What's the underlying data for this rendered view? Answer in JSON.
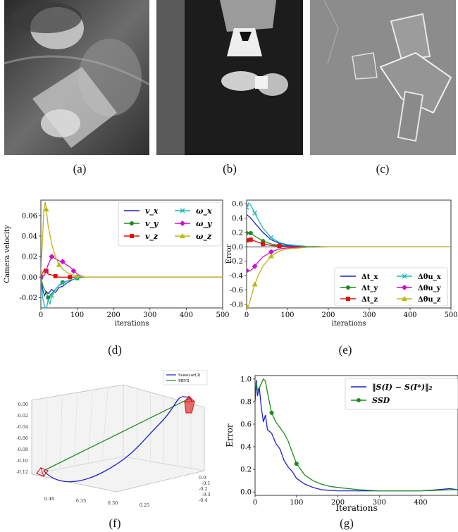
{
  "captions": [
    "(a)",
    "(b)",
    "(c)",
    "(d)",
    "(e)",
    "(f)",
    "(g)"
  ],
  "panel_f_legend": [
    "Ssaso-ar(3)",
    "PBVS"
  ],
  "chart_data": [
    {
      "panel": "d",
      "type": "line",
      "ylabel": "Camera velocity",
      "xlabel": "iterations",
      "xlim": [
        0,
        500
      ],
      "ylim": [
        -0.03,
        0.075
      ],
      "xticks": [
        0,
        100,
        200,
        300,
        400,
        500
      ],
      "yticks": [
        -0.02,
        0.0,
        0.02,
        0.04,
        0.06
      ],
      "legend_position": "top-right",
      "series": [
        {
          "name": "v_x",
          "color": "#1f1fd0",
          "marker": "none",
          "x": [
            0,
            5,
            10,
            15,
            20,
            30,
            40,
            50,
            60,
            70,
            80,
            90,
            100,
            120,
            150,
            200,
            500
          ],
          "y": [
            0,
            -0.012,
            -0.018,
            -0.014,
            -0.016,
            -0.012,
            -0.015,
            -0.01,
            -0.009,
            -0.006,
            -0.004,
            -0.002,
            -0.001,
            0,
            0,
            0,
            0
          ]
        },
        {
          "name": "v_y",
          "color": "#1a8c1a",
          "marker": "circle",
          "x": [
            0,
            5,
            10,
            15,
            20,
            30,
            40,
            50,
            60,
            70,
            80,
            90,
            100,
            120,
            150,
            200,
            500
          ],
          "y": [
            0,
            -0.008,
            -0.012,
            -0.015,
            -0.02,
            -0.016,
            -0.012,
            -0.008,
            -0.005,
            -0.004,
            -0.003,
            -0.002,
            -0.001,
            0,
            0,
            0,
            0
          ]
        },
        {
          "name": "v_z",
          "color": "#e01010",
          "marker": "square",
          "x": [
            0,
            5,
            10,
            15,
            20,
            30,
            40,
            50,
            60,
            80,
            100,
            500
          ],
          "y": [
            0,
            0.004,
            0.008,
            0.006,
            0.003,
            0.002,
            0.001,
            0,
            0,
            0,
            0,
            0
          ]
        },
        {
          "name": "ω_x",
          "color": "#17b8b8",
          "marker": "x",
          "x": [
            0,
            5,
            10,
            15,
            20,
            25,
            30,
            40,
            50,
            60,
            70,
            80,
            100,
            120,
            500
          ],
          "y": [
            0,
            -0.02,
            -0.028,
            -0.032,
            -0.022,
            -0.026,
            -0.018,
            -0.012,
            -0.008,
            -0.006,
            -0.004,
            -0.003,
            -0.001,
            0,
            0
          ]
        },
        {
          "name": "ω_y",
          "color": "#cc10cc",
          "marker": "diamond",
          "x": [
            0,
            10,
            20,
            30,
            40,
            50,
            60,
            70,
            80,
            90,
            100,
            110,
            120,
            150,
            500
          ],
          "y": [
            0,
            0.002,
            0.012,
            0.02,
            0.018,
            0.016,
            0.015,
            0.012,
            0.01,
            0.006,
            0.003,
            0.001,
            0,
            0,
            0
          ]
        },
        {
          "name": "ω_z",
          "color": "#b8b814",
          "marker": "triangle",
          "x": [
            0,
            5,
            8,
            12,
            15,
            20,
            30,
            40,
            50,
            60,
            70,
            80,
            100,
            120,
            150,
            500
          ],
          "y": [
            0.005,
            0.04,
            0.065,
            0.073,
            0.066,
            0.05,
            0.032,
            0.02,
            0.012,
            0.008,
            0.005,
            0.003,
            0.001,
            0,
            0,
            0
          ]
        }
      ]
    },
    {
      "panel": "e",
      "type": "line",
      "ylabel": "Error",
      "xlabel": "iterations",
      "xlim": [
        0,
        500
      ],
      "ylim": [
        -0.85,
        0.65
      ],
      "xticks": [
        0,
        100,
        200,
        300,
        400,
        500
      ],
      "yticks": [
        -0.8,
        -0.6,
        -0.4,
        -0.2,
        0.0,
        0.2,
        0.4,
        0.6
      ],
      "legend_position": "bottom-right",
      "series": [
        {
          "name": "Δt_x",
          "color": "#1f1fd0",
          "marker": "none",
          "x": [
            0,
            10,
            20,
            40,
            60,
            80,
            100,
            150,
            200,
            500
          ],
          "y": [
            0.45,
            0.4,
            0.33,
            0.2,
            0.1,
            0.05,
            0.02,
            0.005,
            0,
            0
          ]
        },
        {
          "name": "Δt_y",
          "color": "#1a8c1a",
          "marker": "circle",
          "x": [
            0,
            5,
            10,
            20,
            40,
            60,
            80,
            100,
            150,
            200,
            500
          ],
          "y": [
            0.19,
            0.2,
            0.19,
            0.15,
            0.08,
            0.04,
            0.02,
            0.01,
            0.002,
            0,
            0
          ]
        },
        {
          "name": "Δt_z",
          "color": "#e01010",
          "marker": "square",
          "x": [
            0,
            5,
            10,
            20,
            40,
            60,
            80,
            100,
            150,
            500
          ],
          "y": [
            0.09,
            0.11,
            0.1,
            0.08,
            0.04,
            0.02,
            0.01,
            0.005,
            0,
            0
          ]
        },
        {
          "name": "Δθu_x",
          "color": "#17b8b8",
          "marker": "x",
          "x": [
            0,
            5,
            10,
            20,
            30,
            40,
            60,
            80,
            100,
            150,
            200,
            500
          ],
          "y": [
            0.55,
            0.61,
            0.58,
            0.47,
            0.36,
            0.26,
            0.13,
            0.06,
            0.03,
            0.005,
            0,
            0
          ]
        },
        {
          "name": "Δθu_y",
          "color": "#cc10cc",
          "marker": "diamond",
          "x": [
            0,
            5,
            10,
            20,
            30,
            40,
            60,
            80,
            100,
            150,
            200,
            500
          ],
          "y": [
            -0.33,
            -0.34,
            -0.33,
            -0.27,
            -0.2,
            -0.14,
            -0.07,
            -0.03,
            -0.015,
            -0.003,
            0,
            0
          ]
        },
        {
          "name": "Δθu_z",
          "color": "#b8b814",
          "marker": "triangle",
          "x": [
            0,
            5,
            10,
            20,
            30,
            40,
            60,
            80,
            100,
            150,
            200,
            500
          ],
          "y": [
            -0.82,
            -0.82,
            -0.72,
            -0.52,
            -0.38,
            -0.27,
            -0.13,
            -0.06,
            -0.03,
            -0.006,
            0,
            0
          ]
        }
      ]
    },
    {
      "panel": "f",
      "type": "line",
      "projection": "3d",
      "ztick_labels": [
        "0.00",
        "-0.02",
        "-0.04",
        "-0.06",
        "-0.08",
        "-0.10",
        "-0.12"
      ],
      "xtick_labels": [
        "0.40",
        "0.35",
        "0.30",
        "0.25"
      ],
      "ytick_labels": [
        "0.0",
        "-0.1",
        "-0.2",
        "-0.3",
        "-0.4"
      ],
      "series": [
        {
          "name": "Ssaso-ar(3)",
          "color": "#1f1fd0"
        },
        {
          "name": "PBVS",
          "color": "#1a8c1a"
        }
      ]
    },
    {
      "panel": "g",
      "type": "line",
      "ylabel": "Error",
      "xlabel": "Iterations",
      "xlim": [
        0,
        490
      ],
      "ylim": [
        -0.03,
        1.03
      ],
      "xticks": [
        0,
        100,
        200,
        300,
        400
      ],
      "yticks": [
        0.0,
        0.2,
        0.4,
        0.6,
        0.8,
        1.0
      ],
      "legend_position": "top-right",
      "series": [
        {
          "name": "‖S(I) − S(I*)‖₂",
          "color": "#1f1fd0",
          "marker": "none",
          "x": [
            0,
            3,
            6,
            10,
            15,
            20,
            25,
            30,
            40,
            50,
            60,
            70,
            80,
            90,
            100,
            120,
            140,
            160,
            180,
            200,
            250,
            300,
            350,
            400,
            440,
            470,
            490
          ],
          "y": [
            0.8,
            0.99,
            0.85,
            0.93,
            0.75,
            0.62,
            0.68,
            0.55,
            0.52,
            0.43,
            0.38,
            0.28,
            0.22,
            0.18,
            0.12,
            0.07,
            0.04,
            0.02,
            0.015,
            0.01,
            0.01,
            0.01,
            0.01,
            0.01,
            0.02,
            0.03,
            0.02
          ]
        },
        {
          "name": "SSD",
          "color": "#1a8c1a",
          "marker": "circle",
          "x": [
            0,
            5,
            10,
            20,
            25,
            30,
            40,
            50,
            60,
            70,
            80,
            90,
            100,
            120,
            140,
            160,
            180,
            200,
            250,
            300,
            350,
            400,
            440,
            470,
            490
          ],
          "y": [
            0.95,
            0.9,
            0.92,
            1.0,
            0.98,
            0.88,
            0.7,
            0.62,
            0.57,
            0.52,
            0.45,
            0.35,
            0.25,
            0.15,
            0.1,
            0.07,
            0.05,
            0.04,
            0.02,
            0.01,
            0.01,
            0.01,
            0.015,
            0.02,
            0.02
          ]
        }
      ]
    }
  ]
}
